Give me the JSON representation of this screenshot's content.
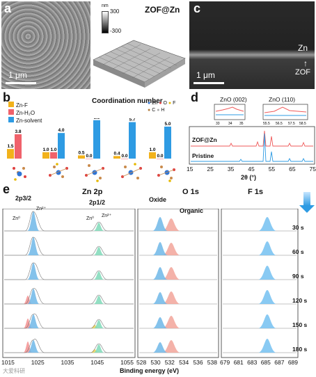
{
  "panel_a": {
    "letter": "a",
    "scale": "1 μm",
    "title": "ZOF@Zn",
    "cbar_unit": "nm",
    "cbar_max": "300",
    "cbar_min": "-300"
  },
  "panel_c": {
    "letter": "c",
    "scale": "1 μm",
    "label_top": "Zn",
    "label_bottom": "ZOF"
  },
  "panel_b": {
    "letter": "b",
    "title": "Coordination number",
    "legend": [
      "Zn-F",
      "Zn-H₂O",
      "Zn-solvent"
    ],
    "atoms": [
      "Zn",
      "O",
      "F",
      "C",
      "H"
    ],
    "colors": {
      "znf": "#f2b21b",
      "znh2o": "#f0626b",
      "znsolvent": "#2e9be3"
    }
  },
  "chart_data": [
    {
      "type": "bar",
      "title": "Coordination number",
      "series": [
        {
          "name": "Zn-F",
          "values": [
            1.5,
            1.0,
            0.5,
            0.4,
            1.0
          ]
        },
        {
          "name": "Zn-H₂O",
          "values": [
            3.8,
            1.0,
            0.0,
            0.0,
            0.0
          ]
        },
        {
          "name": "Zn-solvent",
          "values": [
            0,
            4.0,
            6.0,
            5.7,
            5.0
          ]
        }
      ],
      "value_labels": [
        [
          "1.5",
          "3.8",
          ""
        ],
        [
          "1.0",
          "1.0",
          "4.0"
        ],
        [
          "0.5",
          "0.0",
          "6.0"
        ],
        [
          "0.4",
          "0.0",
          "5.7"
        ],
        [
          "1.0",
          "0.0",
          "5.0"
        ]
      ]
    },
    {
      "type": "line",
      "xlabel": "2θ (°)",
      "xticks": [
        "15",
        "20",
        "25",
        "30",
        "35",
        "40",
        "45",
        "50",
        "55",
        "60",
        "65",
        "70",
        "75"
      ],
      "series": [
        {
          "name": "ZOF@Zn"
        },
        {
          "name": "Pristine"
        }
      ],
      "insets": [
        {
          "title": "ZnO (002)",
          "ticks": [
            "33",
            "34",
            "35"
          ]
        },
        {
          "title": "ZnO (110)",
          "ticks": [
            "55.5",
            "56.5",
            "57.5",
            "58.5"
          ]
        }
      ]
    },
    {
      "type": "line",
      "xlabel": "Binding energy (eV)",
      "panels": [
        {
          "title": "Zn 2p",
          "ticks": [
            "1015",
            "1025",
            "1035",
            "1045",
            "1055"
          ],
          "labels": [
            "2p3/2",
            "2p1/2",
            "Zn⁰",
            "Zn²⁺",
            "Zn⁰",
            "Zn²⁺"
          ]
        },
        {
          "title": "O 1s",
          "ticks": [
            "528",
            "530",
            "532",
            "534",
            "536",
            "538"
          ],
          "labels": [
            "Oxide",
            "Organic"
          ]
        },
        {
          "title": "F 1s",
          "ticks": [
            "679",
            "681",
            "683",
            "685",
            "687",
            "689"
          ]
        }
      ],
      "times": [
        "30 s",
        "60 s",
        "90 s",
        "120 s",
        "150 s",
        "180 s"
      ]
    }
  ],
  "panel_d": {
    "letter": "d",
    "inset1": "ZnO (002)",
    "inset2": "ZnO (110)",
    "s1": "ZOF@Zn",
    "s2": "Pristine",
    "xlabel": "2θ (°)"
  },
  "panel_e": {
    "letter": "e",
    "zn_title": "Zn 2p",
    "o_title": "O 1s",
    "f_title": "F 1s",
    "p32": "2p3/2",
    "p12": "2p1/2",
    "zn0": "Zn⁰",
    "zn2": "Zn²⁺",
    "oxide": "Oxide",
    "organic": "Organic",
    "xlabel": "Binding energy (eV)"
  },
  "watermark": "大爱科研"
}
